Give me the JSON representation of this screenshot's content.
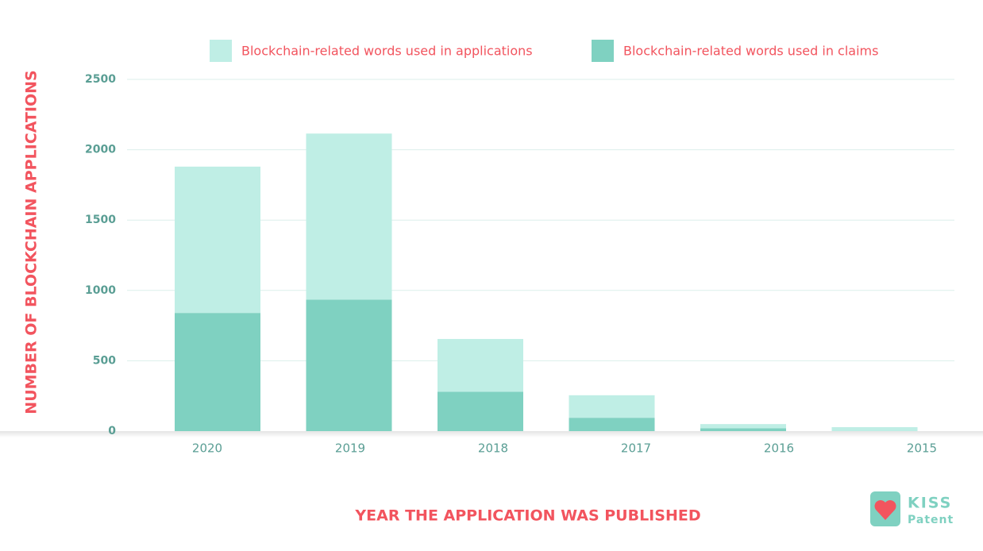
{
  "chart_data": {
    "type": "bar",
    "stacked": true,
    "x_label": "YEAR THE APPLICATION WAS PUBLISHED",
    "y_label": "NUMBER OF BLOCKCHAIN APPLICATIONS",
    "categories": [
      "2020",
      "2019",
      "2018",
      "2017",
      "2016",
      "2015"
    ],
    "series": [
      {
        "name": "Blockchain-related words used in applications",
        "color": "#bfeee5",
        "values": [
          1040,
          1180,
          375,
          160,
          30,
          28
        ]
      },
      {
        "name": "Blockchain-related words used in claims",
        "color": "#7fd1c1",
        "values": [
          840,
          935,
          280,
          95,
          20,
          0
        ]
      }
    ],
    "ylim": [
      0,
      2500
    ],
    "yticks": [
      0,
      500,
      1000,
      1500,
      2000,
      2500
    ],
    "grid": true,
    "legend": "top"
  },
  "logo": {
    "line1": "KISS",
    "line2": "Patent"
  }
}
